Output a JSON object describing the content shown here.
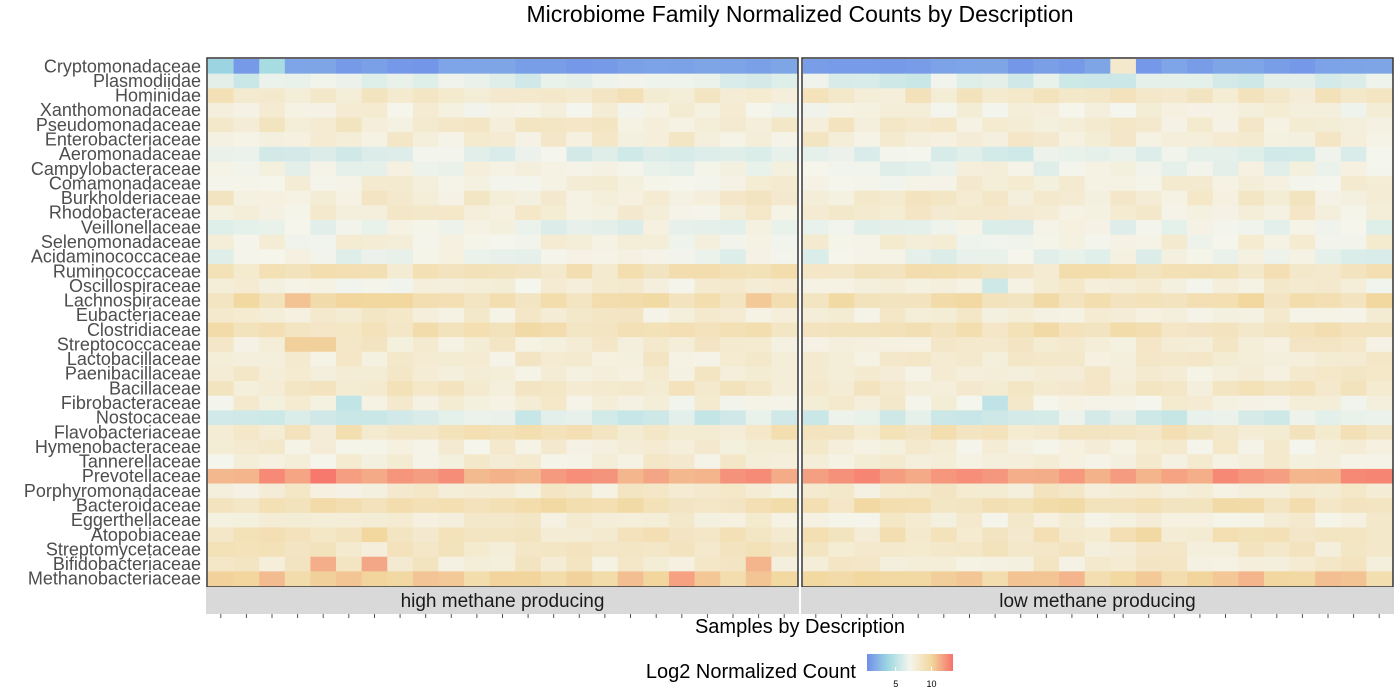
{
  "colors": {
    "background": "#ffffff",
    "strip_fill": "#d9d9d9",
    "panel_border": "#333333",
    "scale": [
      "#6f8fe9",
      "#9fd9e2",
      "#f5f5ec",
      "#f2d79e",
      "#f7716a"
    ]
  },
  "chart_data": {
    "type": "heatmap",
    "title": "Microbiome Family Normalized Counts by Description",
    "xlabel": "Samples by Description",
    "ylabel": "",
    "rows": [
      "Cryptomonadaceae",
      "Plasmodiidae",
      "Hominidae",
      "Xanthomonadaceae",
      "Pseudomonadaceae",
      "Enterobacteriaceae",
      "Aeromonadaceae",
      "Campylobacteraceae",
      "Comamonadaceae",
      "Burkholderiaceae",
      "Rhodobacteraceae",
      "Veillonellaceae",
      "Selenomonadaceae",
      "Acidaminococcaceae",
      "Ruminococcaceae",
      "Oscillospiraceae",
      "Lachnospiraceae",
      "Eubacteriaceae",
      "Clostridiaceae",
      "Streptococcaceae",
      "Lactobacillaceae",
      "Paenibacillaceae",
      "Bacillaceae",
      "Fibrobacteraceae",
      "Nostocaceae",
      "Flavobacteriaceae",
      "Hymenobacteraceae",
      "Tannerellaceae",
      "Prevotellaceae",
      "Porphyromonadaceae",
      "Bacteroidaceae",
      "Eggerthellaceae",
      "Atopobiaceae",
      "Streptomycetaceae",
      "Bifidobacteriaceae",
      "Methanobacteriaceae"
    ],
    "row_base": [
      1.6,
      6.2,
      8.4,
      7.4,
      8.0,
      7.9,
      6.4,
      7.0,
      7.6,
      8.0,
      7.8,
      6.8,
      7.4,
      6.8,
      8.7,
      7.6,
      9.3,
      7.9,
      9.0,
      8.0,
      7.9,
      7.9,
      8.3,
      7.6,
      6.0,
      8.6,
      7.7,
      7.7,
      11.6,
      8.0,
      9.1,
      7.8,
      8.6,
      8.3,
      8.0,
      10.0
    ],
    "facets": [
      {
        "label": "high methane producing",
        "n_samples": 23,
        "special": [
          {
            "row": "Cryptomonadaceae",
            "col": 0,
            "value": 3.8
          },
          {
            "row": "Cryptomonadaceae",
            "col": 2,
            "value": 4.3
          },
          {
            "row": "Lachnospiraceae",
            "col": 3,
            "value": 10.6
          },
          {
            "row": "Lachnospiraceae",
            "col": 21,
            "value": 10.4
          },
          {
            "row": "Streptococcaceae",
            "col": 3,
            "value": 10.2
          },
          {
            "row": "Streptococcaceae",
            "col": 4,
            "value": 10.2
          },
          {
            "row": "Fibrobacteraceae",
            "col": 5,
            "value": 5.2
          },
          {
            "row": "Nostocaceae",
            "col": 5,
            "value": 5.5
          },
          {
            "row": "Nostocaceae",
            "col": 6,
            "value": 5.5
          },
          {
            "row": "Prevotellaceae",
            "col": 4,
            "value": 12.8
          },
          {
            "row": "Bifidobacteriaceae",
            "col": 4,
            "value": 11.2
          },
          {
            "row": "Bifidobacteriaceae",
            "col": 6,
            "value": 11.4
          },
          {
            "row": "Bifidobacteriaceae",
            "col": 21,
            "value": 11.0
          },
          {
            "row": "Atopobiaceae",
            "col": 6,
            "value": 10.0
          },
          {
            "row": "Methanobacteriaceae",
            "col": 2,
            "value": 10.8
          },
          {
            "row": "Methanobacteriaceae",
            "col": 18,
            "value": 11.6
          }
        ]
      },
      {
        "label": "low methane producing",
        "n_samples": 23,
        "special": [
          {
            "row": "Cryptomonadaceae",
            "col": 12,
            "value": 8.2
          },
          {
            "row": "Oscillospiraceae",
            "col": 7,
            "value": 5.6
          },
          {
            "row": "Fibrobacteraceae",
            "col": 7,
            "value": 5.1
          },
          {
            "row": "Nostocaceae",
            "col": 3,
            "value": 5.6
          },
          {
            "row": "Nostocaceae",
            "col": 7,
            "value": 5.6
          },
          {
            "row": "Nostocaceae",
            "col": 8,
            "value": 5.8
          },
          {
            "row": "Nostocaceae",
            "col": 13,
            "value": 5.6
          },
          {
            "row": "Nostocaceae",
            "col": 18,
            "value": 5.6
          },
          {
            "row": "Prevotellaceae",
            "col": 2,
            "value": 12.4
          },
          {
            "row": "Prevotellaceae",
            "col": 16,
            "value": 12.3
          },
          {
            "row": "Prevotellaceae",
            "col": 22,
            "value": 12.4
          },
          {
            "row": "Bacteroidaceae",
            "col": 2,
            "value": 9.8
          },
          {
            "row": "Atopobiaceae",
            "col": 13,
            "value": 9.8
          },
          {
            "row": "Methanobacteriaceae",
            "col": 10,
            "value": 11.0
          },
          {
            "row": "Methanobacteriaceae",
            "col": 17,
            "value": 11.0
          }
        ]
      }
    ],
    "legend": {
      "title": "Log2 Normalized Count",
      "range": [
        1,
        13
      ],
      "ticks": [
        5,
        10
      ],
      "tick_labels": [
        "5",
        "10"
      ],
      "position": "bottom"
    }
  }
}
